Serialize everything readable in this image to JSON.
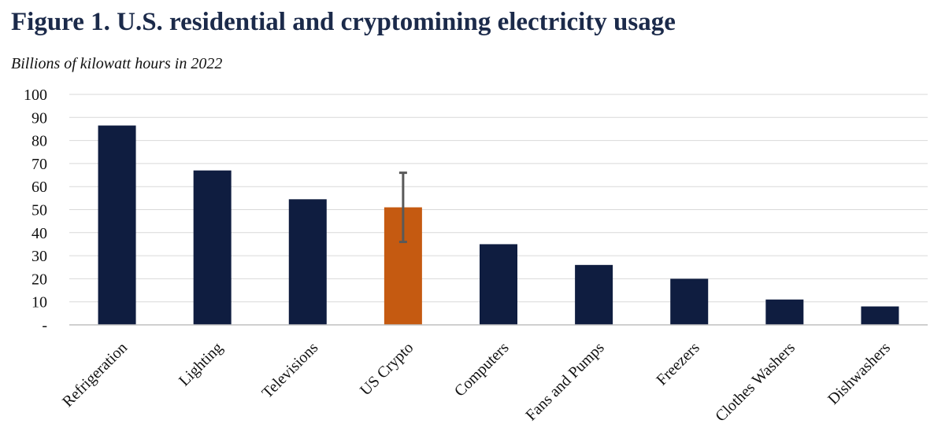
{
  "chart_data": {
    "type": "bar",
    "title": "Figure 1. U.S. residential and cryptomining electricity usage",
    "subtitle": "Billions of kilowatt hours in 2022",
    "xlabel": "",
    "ylabel": "",
    "ylim": [
      0,
      100
    ],
    "yticks": [
      {
        "value": 0,
        "label": "-"
      },
      {
        "value": 10,
        "label": "10"
      },
      {
        "value": 20,
        "label": "20"
      },
      {
        "value": 30,
        "label": "30"
      },
      {
        "value": 40,
        "label": "40"
      },
      {
        "value": 50,
        "label": "50"
      },
      {
        "value": 60,
        "label": "60"
      },
      {
        "value": 70,
        "label": "70"
      },
      {
        "value": 80,
        "label": "80"
      },
      {
        "value": 90,
        "label": "90"
      },
      {
        "value": 100,
        "label": "100"
      }
    ],
    "grid": true,
    "legend": "none",
    "categories": [
      "Refrigeration",
      "Lighting",
      "Televisions",
      "US Crypto",
      "Computers",
      "Fans and Pumps",
      "Freezers",
      "Clothes Washers",
      "Dishwashers"
    ],
    "values": [
      86.5,
      67,
      54.5,
      51,
      35,
      26,
      20,
      11,
      8
    ],
    "colors": [
      "#0f1d40",
      "#0f1d40",
      "#0f1d40",
      "#c55a11",
      "#0f1d40",
      "#0f1d40",
      "#0f1d40",
      "#0f1d40",
      "#0f1d40"
    ],
    "error_bars": [
      {
        "category": "US Crypto",
        "low": 36,
        "high": 66
      }
    ]
  }
}
